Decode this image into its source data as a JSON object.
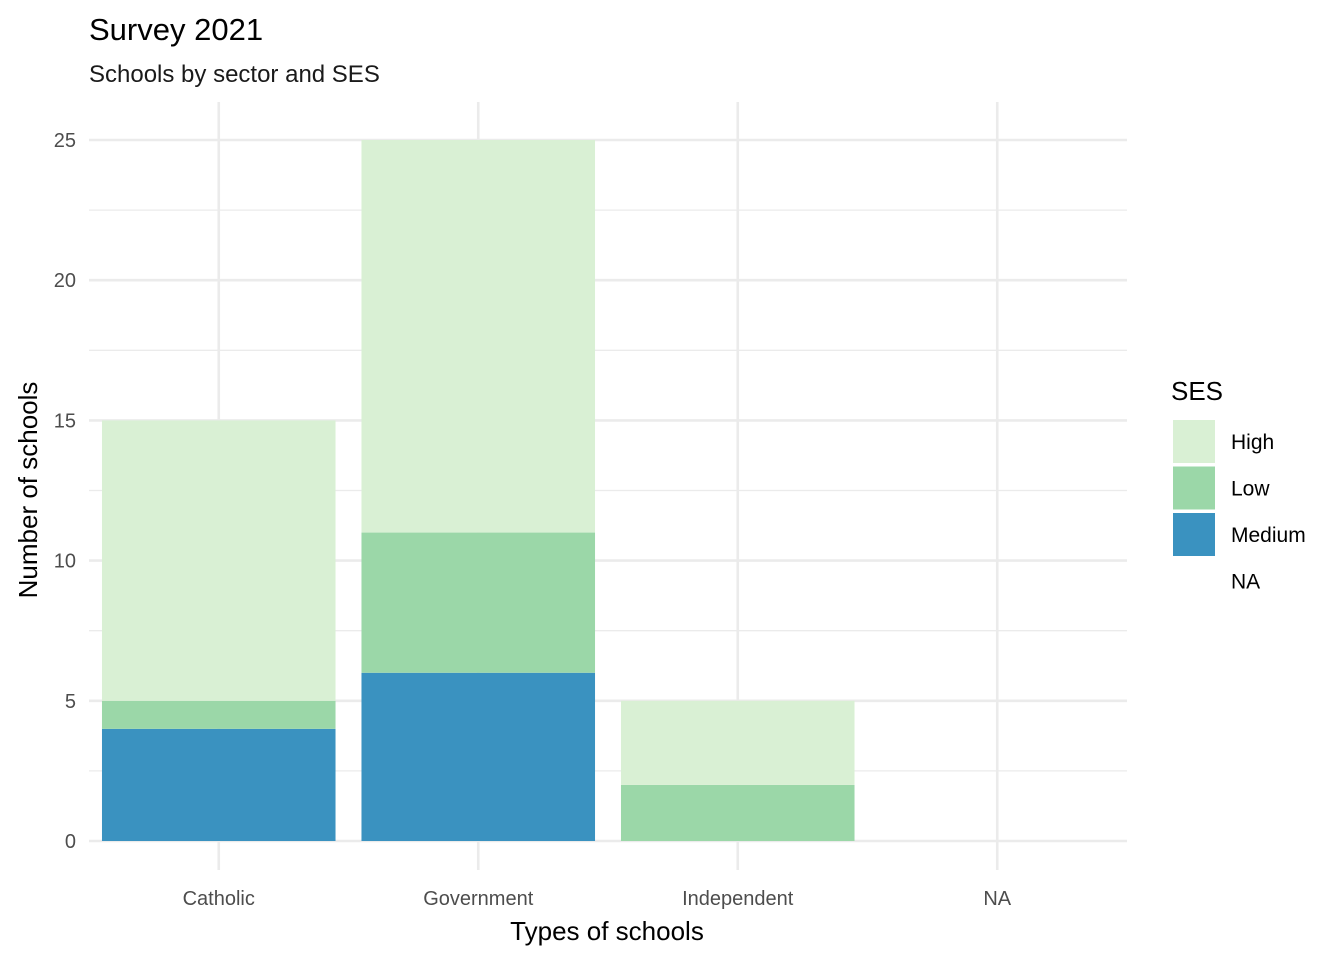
{
  "chart_data": {
    "type": "bar",
    "stacked": true,
    "title": "Survey 2021",
    "subtitle": "Schools by sector and SES",
    "xlabel": "Types of schools",
    "ylabel": "Number of schools",
    "categories": [
      "Catholic",
      "Government",
      "Independent",
      "NA"
    ],
    "ylim": [
      0,
      25
    ],
    "yticks": [
      0,
      5,
      10,
      15,
      20,
      25
    ],
    "grid": true,
    "legend_title": "SES",
    "legend_position": "right",
    "series": [
      {
        "name": "Medium",
        "color": "#3a92c0",
        "values": [
          4,
          6,
          0,
          0
        ]
      },
      {
        "name": "Low",
        "color": "#9bd7a8",
        "values": [
          1,
          5,
          2,
          0
        ]
      },
      {
        "name": "High",
        "color": "#d9f0d4",
        "values": [
          10,
          14,
          3,
          0
        ]
      }
    ],
    "legend": [
      {
        "name": "High",
        "color": "#d9f0d4"
      },
      {
        "name": "Low",
        "color": "#9bd7a8"
      },
      {
        "name": "Medium",
        "color": "#3a92c0"
      },
      {
        "name": "NA",
        "color": "#ffffff"
      }
    ]
  }
}
